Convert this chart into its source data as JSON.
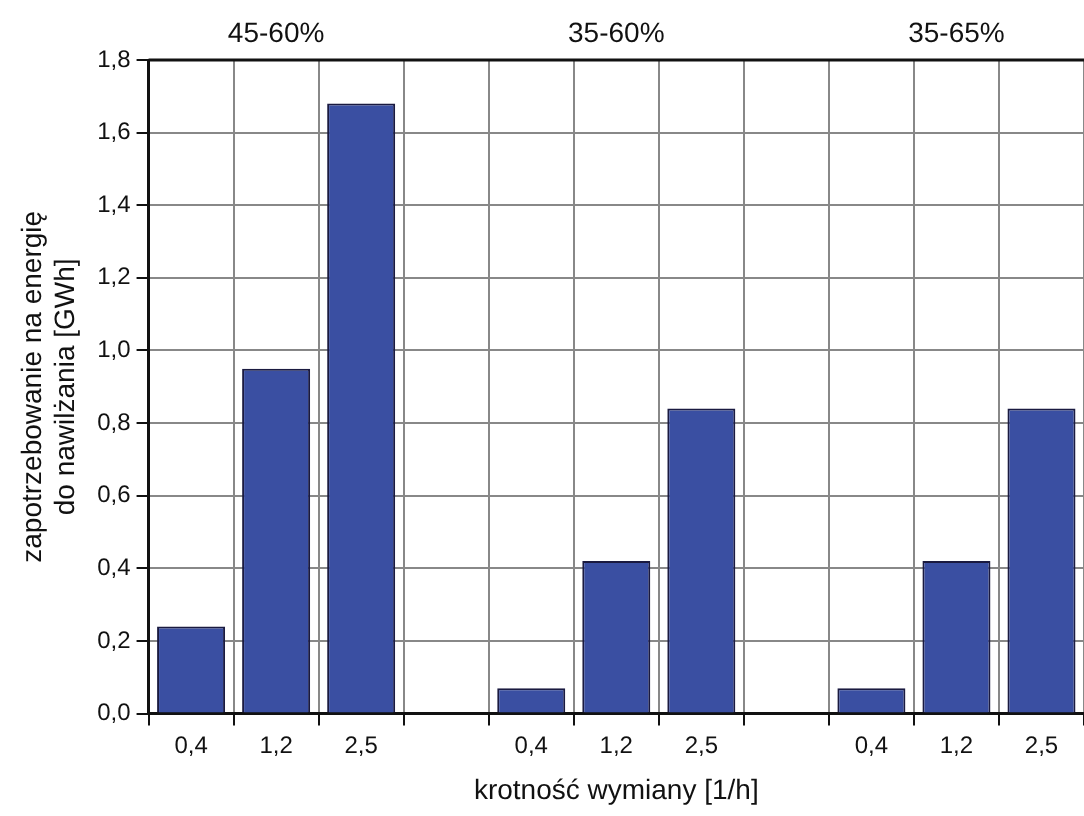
{
  "chart_data": {
    "type": "bar",
    "xlabel": "krotność wymiany [1/h]",
    "ylabel": "zapotrzebowanie na energię\ndo nawilżania [GWh]",
    "categories": [
      "0,4",
      "1,2",
      "2,5",
      null,
      "0,4",
      "1,2",
      "2,5",
      null,
      "0,4",
      "1,2",
      "2,5"
    ],
    "values": [
      0.24,
      0.95,
      1.68,
      null,
      0.07,
      0.42,
      0.84,
      null,
      0.07,
      0.42,
      0.84
    ],
    "color": "#3a4fa2",
    "ylim": [
      0,
      1.8
    ],
    "yticks": [
      {
        "value": 0,
        "label": "0,0"
      },
      {
        "value": 0.2,
        "label": "0,2"
      },
      {
        "value": 0.4,
        "label": "0,4"
      },
      {
        "value": 0.6,
        "label": "0,6"
      },
      {
        "value": 0.8,
        "label": "0,8"
      },
      {
        "value": 1.0,
        "label": "1,0"
      },
      {
        "value": 1.2,
        "label": "1,2"
      },
      {
        "value": 1.4,
        "label": "1,4"
      },
      {
        "value": 1.6,
        "label": "1,6"
      },
      {
        "value": 1.8,
        "label": "1,8"
      }
    ],
    "annotations": [
      "45-60%",
      "35-60%",
      "35-65%"
    ],
    "grid": true
  }
}
